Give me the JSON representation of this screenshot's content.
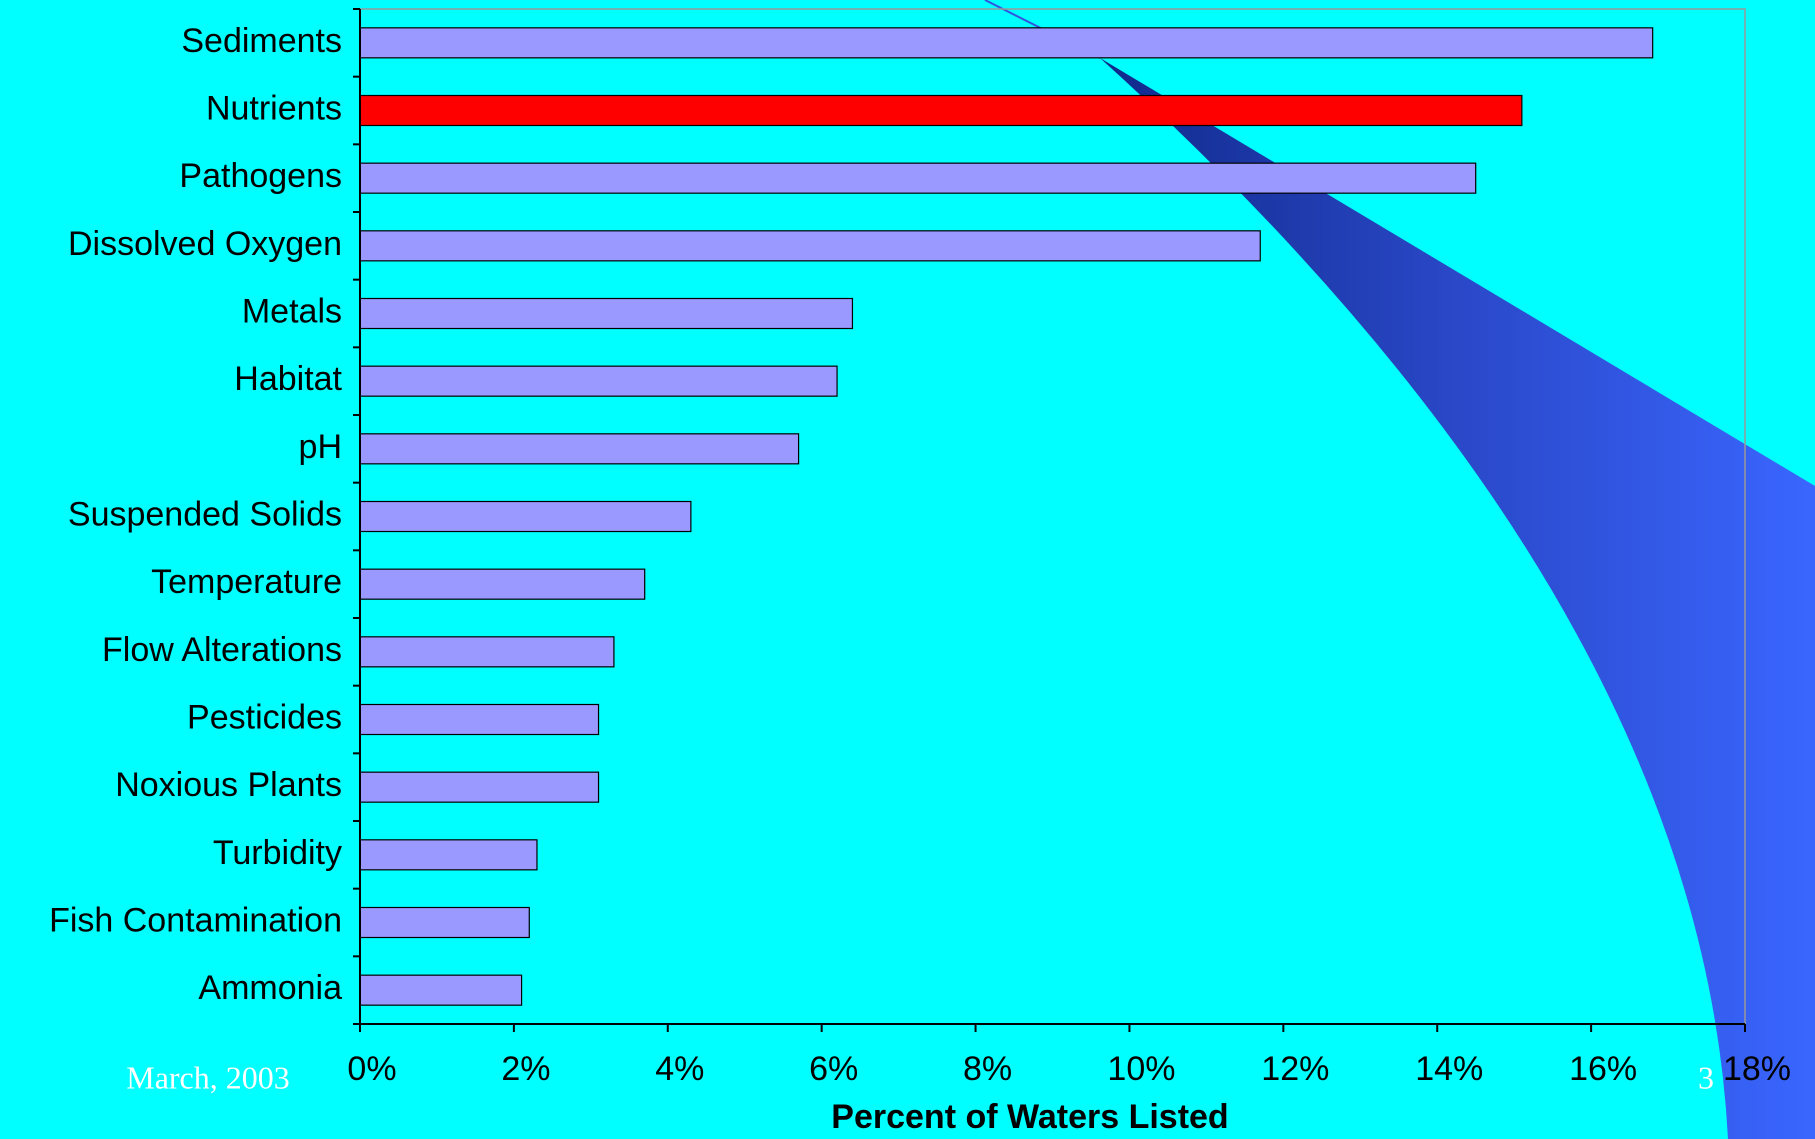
{
  "chart_data": {
    "type": "bar",
    "orientation": "horizontal",
    "categories": [
      "Sediments",
      "Nutrients",
      "Pathogens",
      "Dissolved Oxygen",
      "Metals",
      "Habitat",
      "pH",
      "Suspended Solids",
      "Temperature",
      "Flow Alterations",
      "Pesticides",
      "Noxious Plants",
      "Turbidity",
      "Fish Contamination",
      "Ammonia"
    ],
    "values": [
      16.8,
      15.1,
      14.5,
      11.7,
      6.4,
      6.2,
      5.7,
      4.3,
      3.7,
      3.3,
      3.1,
      3.1,
      2.3,
      2.2,
      2.1
    ],
    "colors": [
      "#9999ff",
      "#ff0000",
      "#9999ff",
      "#9999ff",
      "#9999ff",
      "#9999ff",
      "#9999ff",
      "#9999ff",
      "#9999ff",
      "#9999ff",
      "#9999ff",
      "#9999ff",
      "#9999ff",
      "#9999ff",
      "#9999ff"
    ],
    "xlabel": "Percent of Waters Listed",
    "xlim": [
      0,
      18
    ],
    "xticks": [
      {
        "value": 0,
        "label": "0%"
      },
      {
        "value": 2,
        "label": "2%"
      },
      {
        "value": 4,
        "label": "4%"
      },
      {
        "value": 6,
        "label": "6%"
      },
      {
        "value": 8,
        "label": "8%"
      },
      {
        "value": 10,
        "label": "10%"
      },
      {
        "value": 12,
        "label": "12%"
      },
      {
        "value": 14,
        "label": "14%"
      },
      {
        "value": 16,
        "label": "16%"
      },
      {
        "value": 18,
        "label": "18%"
      }
    ],
    "grid": false
  },
  "footer": {
    "date": "March, 2003",
    "page": "3"
  }
}
